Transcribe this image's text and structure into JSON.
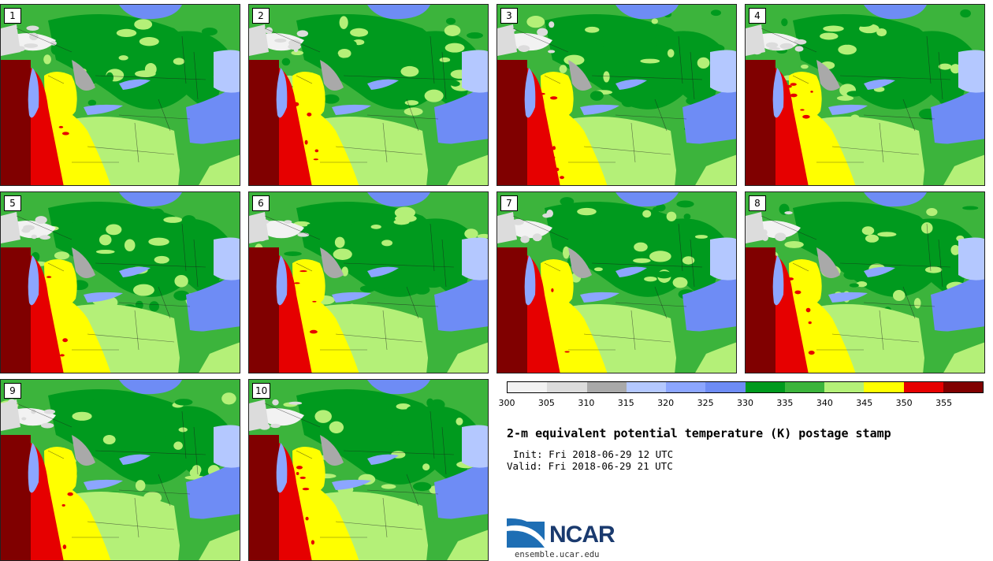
{
  "panels": [
    {
      "label": "1",
      "seed": 1
    },
    {
      "label": "2",
      "seed": 2
    },
    {
      "label": "3",
      "seed": 3
    },
    {
      "label": "4",
      "seed": 4
    },
    {
      "label": "5",
      "seed": 5
    },
    {
      "label": "6",
      "seed": 6
    },
    {
      "label": "7",
      "seed": 7
    },
    {
      "label": "8",
      "seed": 8
    },
    {
      "label": "9",
      "seed": 9
    },
    {
      "label": "10",
      "seed": 10
    }
  ],
  "colorbar": {
    "colors": [
      "#f2f2f2",
      "#dcdcdc",
      "#a9a9a9",
      "#b4c8ff",
      "#8ca6ff",
      "#6e8cf5",
      "#009a1e",
      "#3cb43c",
      "#b4f078",
      "#ffff00",
      "#e60000",
      "#800000"
    ],
    "ticks": [
      "300",
      "305",
      "310",
      "315",
      "320",
      "325",
      "330",
      "335",
      "340",
      "345",
      "350",
      "355"
    ]
  },
  "title": "2-m equivalent potential temperature (K) postage stamp",
  "init": "Init: Fri 2018-06-29 12 UTC",
  "valid": "Valid: Fri 2018-06-29 21 UTC",
  "logo_text": "NCAR",
  "url": "ensemble.ucar.edu"
}
